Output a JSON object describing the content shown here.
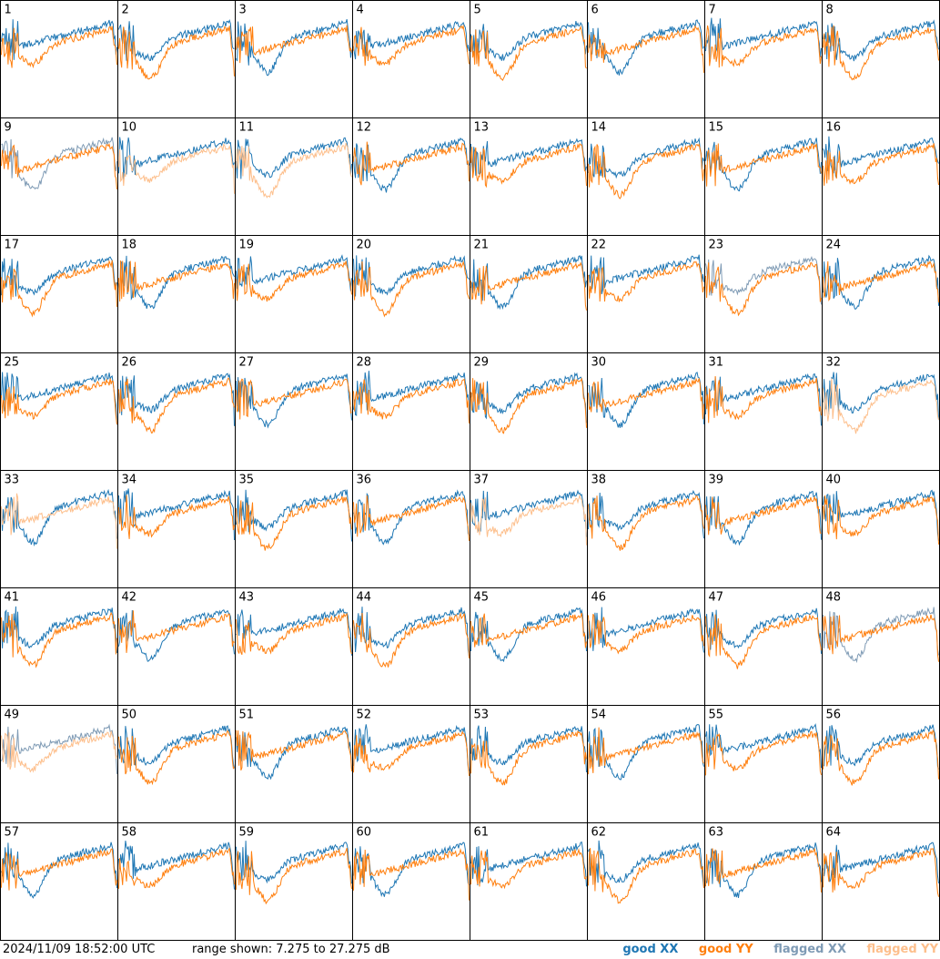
{
  "chart_data": {
    "type": "line",
    "title": "",
    "layout": "8x8 grid of per-tile spectra",
    "tiles": [
      "1",
      "2",
      "3",
      "4",
      "5",
      "6",
      "7",
      "8",
      "9",
      "10",
      "11",
      "12",
      "13",
      "14",
      "15",
      "16",
      "17",
      "18",
      "19",
      "20",
      "21",
      "22",
      "23",
      "24",
      "25",
      "26",
      "27",
      "28",
      "29",
      "30",
      "31",
      "32",
      "33",
      "34",
      "35",
      "36",
      "37",
      "38",
      "39",
      "40",
      "41",
      "42",
      "43",
      "44",
      "45",
      "46",
      "47",
      "48",
      "49",
      "50",
      "51",
      "52",
      "53",
      "54",
      "55",
      "56",
      "57",
      "58",
      "59",
      "60",
      "61",
      "62",
      "63",
      "64"
    ],
    "ylim": [
      7.275,
      27.275
    ],
    "yunit": "dB",
    "series": [
      {
        "name": "good XX",
        "color": "#1f77b4"
      },
      {
        "name": "good YY",
        "color": "#ff7f0e"
      },
      {
        "name": "flagged XX",
        "color": "#7f9bb5"
      },
      {
        "name": "flagged YY",
        "color": "#fdbf8c"
      }
    ],
    "flagged_xx_tiles": [
      "9",
      "23",
      "48",
      "49"
    ],
    "flagged_yy_tiles": [
      "10",
      "11",
      "32",
      "33",
      "37",
      "49"
    ],
    "grid": false
  },
  "footer": {
    "timestamp": "2024/11/09 18:52:00 UTC",
    "range_text": "range shown: 7.275 to 27.275 dB"
  },
  "legend": {
    "good_xx": "good XX",
    "good_yy": "good YY",
    "flagged_xx": "flagged XX",
    "flagged_yy": "flagged YY"
  }
}
